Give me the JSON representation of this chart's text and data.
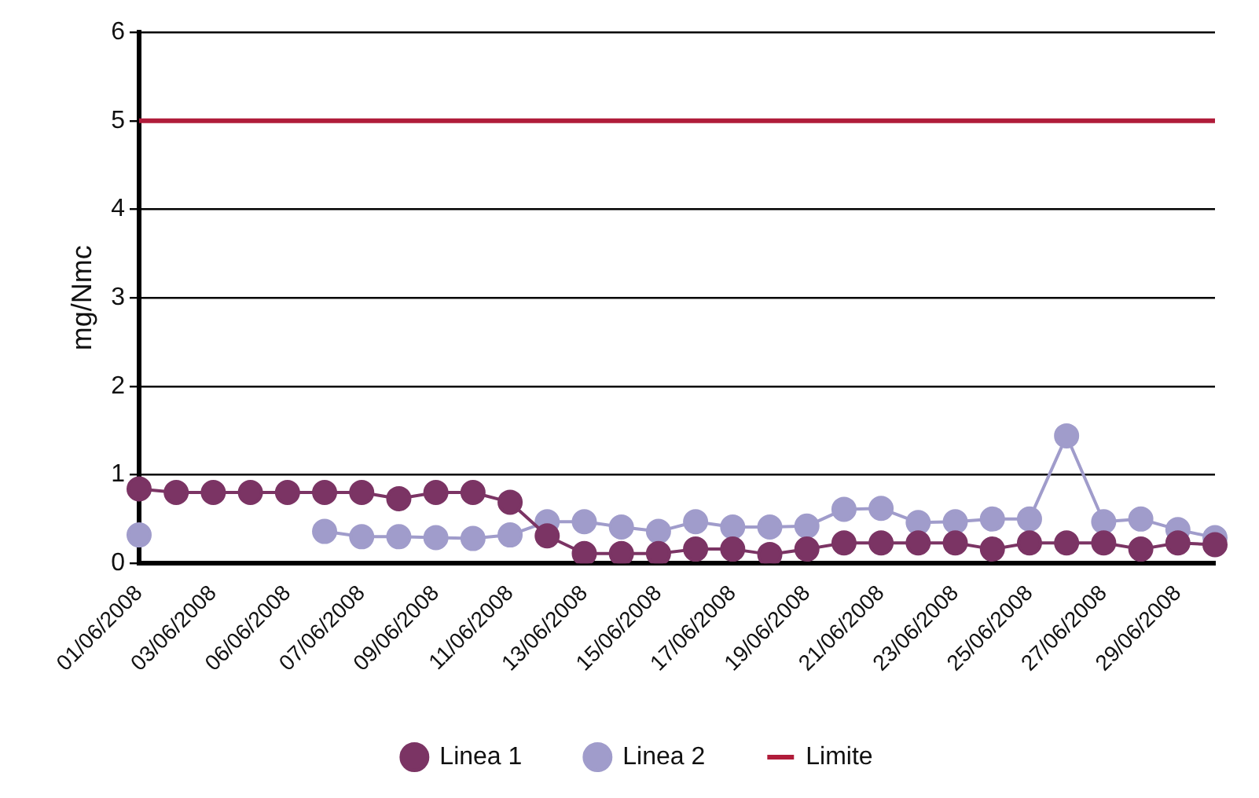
{
  "chart_data": {
    "type": "line",
    "ylabel": "mg/Nmc",
    "categories": [
      "01/06/2008",
      null,
      "03/06/2008",
      null,
      "06/06/2008",
      null,
      "07/06/2008",
      null,
      "09/06/2008",
      null,
      "11/06/2008",
      null,
      "13/06/2008",
      null,
      "15/06/2008",
      null,
      "17/06/2008",
      null,
      "19/06/2008",
      null,
      "21/06/2008",
      null,
      "23/06/2008",
      null,
      "25/06/2008",
      null,
      "27/06/2008",
      null,
      "29/06/2008",
      null
    ],
    "series": [
      {
        "name": "Linea 1",
        "color": "#7b3464",
        "values": [
          0.84,
          0.8,
          0.8,
          0.8,
          0.8,
          0.8,
          0.8,
          0.73,
          0.8,
          0.8,
          0.69,
          0.31,
          0.11,
          0.11,
          0.11,
          0.16,
          0.16,
          0.1,
          0.16,
          0.23,
          0.23,
          0.23,
          0.23,
          0.16,
          0.23,
          0.23,
          0.23,
          0.16,
          0.23,
          0.21
        ]
      },
      {
        "name": "Linea 2",
        "color": "#a09ccb",
        "values": [
          0.32,
          null,
          null,
          null,
          null,
          0.36,
          0.3,
          0.3,
          0.29,
          0.28,
          0.32,
          0.47,
          0.47,
          0.41,
          0.36,
          0.47,
          0.41,
          0.41,
          0.42,
          0.61,
          0.62,
          0.46,
          0.47,
          0.5,
          0.5,
          1.44,
          0.47,
          0.5,
          0.38,
          0.29
        ]
      }
    ],
    "ref_lines": [
      {
        "axis": "y",
        "value": 5,
        "label": "Limite",
        "color": "#b01c3a"
      }
    ],
    "ylim": [
      0,
      6
    ],
    "yticks": [
      0,
      1,
      2,
      3,
      4,
      5,
      6
    ],
    "grid": "y",
    "legend": "bottom",
    "marker": "circle",
    "line_style": "solid"
  }
}
